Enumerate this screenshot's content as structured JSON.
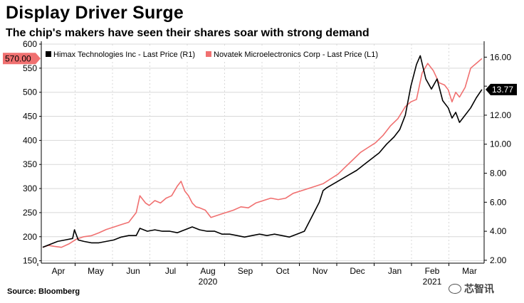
{
  "title": "Display Driver Surge",
  "subtitle": "The chip's makers have seen their shares soar with strong demand",
  "source": "Source: Bloomberg",
  "watermark": "芯智讯",
  "colors": {
    "himax": "#000000",
    "novatek": "#f07070",
    "badge": "#f07070",
    "grid": "#d8d8d8"
  },
  "chart_data": {
    "type": "line",
    "left_axis": {
      "ylim": [
        145,
        600
      ],
      "ticks": [
        150,
        200,
        250,
        300,
        350,
        400,
        450,
        500,
        550,
        600
      ]
    },
    "right_axis": {
      "ylim": [
        1.8,
        16.9
      ],
      "ticks": [
        2.0,
        4.0,
        6.0,
        8.0,
        10.0,
        12.0,
        14.0,
        16.0
      ],
      "tick_labels": [
        "2.00",
        "4.00",
        "6.00",
        "8.00",
        "10.00",
        "12.00",
        "",
        "16.00"
      ]
    },
    "x_months": [
      "Apr",
      "May",
      "Jun",
      "Jul",
      "Aug",
      "Sep",
      "Oct",
      "Nov",
      "Dec",
      "Jan",
      "Feb",
      "Mar"
    ],
    "x_years": [
      {
        "label": "2020",
        "month_index": 4
      },
      {
        "label": "2021",
        "month_index": 10
      }
    ],
    "legend": [
      {
        "name": "Himax Technologies Inc - Last Price (R1)",
        "color": "#000000"
      },
      {
        "name": "Novatek Microelectronics Corp - Last Price (L1)",
        "color": "#f07070"
      }
    ],
    "badges": {
      "left": "570.00",
      "right": "13.77"
    },
    "series": [
      {
        "name": "Novatek Microelectronics Corp - Last Price (L1)",
        "axis": "left",
        "x": [
          0,
          0.15,
          0.3,
          0.5,
          0.7,
          0.9,
          1.1,
          1.3,
          1.5,
          1.7,
          1.9,
          2.1,
          2.3,
          2.5,
          2.6,
          2.75,
          2.85,
          3.0,
          3.15,
          3.3,
          3.45,
          3.6,
          3.7,
          3.8,
          3.9,
          4.0,
          4.1,
          4.2,
          4.35,
          4.5,
          4.7,
          4.9,
          5.1,
          5.3,
          5.5,
          5.7,
          5.9,
          6.1,
          6.3,
          6.5,
          6.7,
          6.9,
          7.1,
          7.3,
          7.5,
          7.7,
          7.9,
          8.1,
          8.3,
          8.5,
          8.7,
          8.9,
          9.1,
          9.3,
          9.5,
          9.7,
          9.85,
          10.0,
          10.15,
          10.3,
          10.45,
          10.6,
          10.75,
          10.85,
          10.95,
          11.05,
          11.15,
          11.3,
          11.45,
          11.6,
          11.75
        ],
        "values": [
          178,
          182,
          180,
          178,
          185,
          195,
          200,
          202,
          208,
          215,
          220,
          225,
          230,
          250,
          285,
          270,
          265,
          275,
          270,
          280,
          285,
          305,
          315,
          295,
          285,
          270,
          262,
          260,
          255,
          240,
          245,
          250,
          255,
          262,
          260,
          270,
          275,
          280,
          277,
          280,
          290,
          295,
          300,
          305,
          310,
          320,
          330,
          345,
          360,
          375,
          385,
          395,
          410,
          430,
          445,
          470,
          480,
          485,
          540,
          560,
          545,
          520,
          515,
          505,
          480,
          500,
          490,
          510,
          550,
          560,
          570
        ]
      },
      {
        "name": "Himax Technologies Inc - Last Price (R1)",
        "axis": "right",
        "x": [
          0,
          0.2,
          0.4,
          0.6,
          0.8,
          0.85,
          0.95,
          1.1,
          1.3,
          1.5,
          1.7,
          1.9,
          2.1,
          2.3,
          2.5,
          2.6,
          2.8,
          3.0,
          3.2,
          3.4,
          3.6,
          3.8,
          4.0,
          4.2,
          4.4,
          4.6,
          4.8,
          5.0,
          5.2,
          5.4,
          5.6,
          5.8,
          6.0,
          6.2,
          6.4,
          6.6,
          6.8,
          7.0,
          7.2,
          7.4,
          7.5,
          7.6,
          7.8,
          8.0,
          8.2,
          8.4,
          8.6,
          8.8,
          9.0,
          9.2,
          9.4,
          9.55,
          9.7,
          9.85,
          10.0,
          10.1,
          10.25,
          10.4,
          10.55,
          10.7,
          10.85,
          10.95,
          11.05,
          11.15,
          11.3,
          11.45,
          11.6,
          11.75
        ],
        "values": [
          2.9,
          3.1,
          3.3,
          3.4,
          3.5,
          4.1,
          3.4,
          3.3,
          3.2,
          3.2,
          3.3,
          3.4,
          3.6,
          3.7,
          3.7,
          4.2,
          4.0,
          4.1,
          4.0,
          4.0,
          3.9,
          4.1,
          4.3,
          4.1,
          4.0,
          4.0,
          3.8,
          3.8,
          3.7,
          3.6,
          3.7,
          3.8,
          3.7,
          3.8,
          3.7,
          3.6,
          3.8,
          4.0,
          5.0,
          6.0,
          6.8,
          7.0,
          7.3,
          7.6,
          7.9,
          8.2,
          8.6,
          9.0,
          9.4,
          10.0,
          10.5,
          11.0,
          12.0,
          14.0,
          15.5,
          16.1,
          14.5,
          13.8,
          14.5,
          13.0,
          12.5,
          11.8,
          12.2,
          11.5,
          12.0,
          12.5,
          13.2,
          13.77
        ]
      }
    ]
  }
}
